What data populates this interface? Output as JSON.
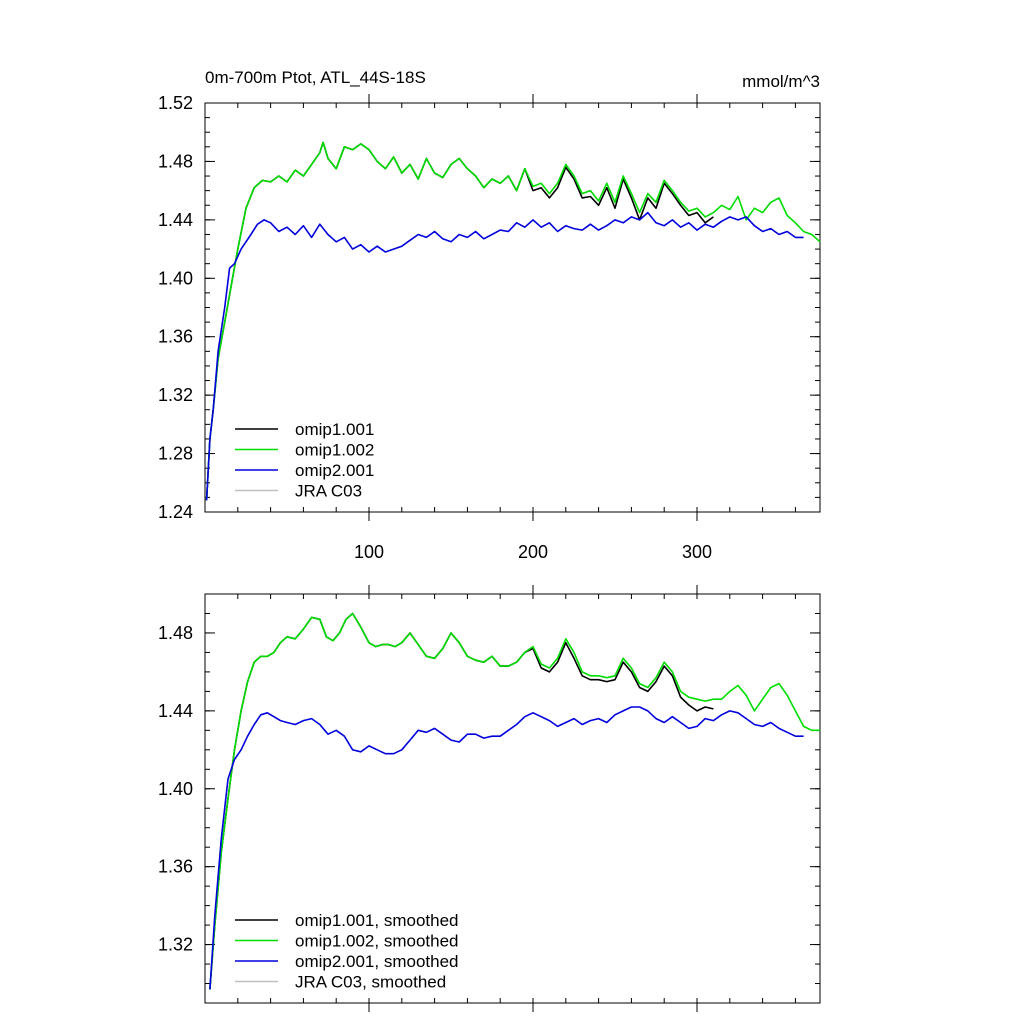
{
  "chart_data": [
    {
      "type": "line",
      "title": "0m-700m Ptot, ATL_44S-18S",
      "units": "mmol/m^3",
      "xlim": [
        0,
        375
      ],
      "ylim": [
        1.24,
        1.52
      ],
      "xticks": [
        100,
        200,
        300
      ],
      "yticks": [
        1.24,
        1.28,
        1.32,
        1.36,
        1.4,
        1.44,
        1.48,
        1.52
      ],
      "ytick_labels": [
        "1.24",
        "1.28",
        "1.32",
        "1.36",
        "1.40",
        "1.44",
        "1.48",
        "1.52"
      ],
      "legend_position": "bottom-left",
      "series": [
        {
          "name": "omip1.001",
          "color": "#000000",
          "x": [
            1,
            3,
            5,
            8,
            12,
            16,
            20,
            25,
            30,
            35,
            40,
            45,
            50,
            55,
            60,
            65,
            70,
            72,
            75,
            80,
            85,
            90,
            95,
            100,
            105,
            110,
            115,
            120,
            125,
            130,
            135,
            140,
            145,
            150,
            155,
            160,
            165,
            170,
            175,
            180,
            185,
            190,
            195,
            200,
            205,
            210,
            215,
            220,
            225,
            230,
            235,
            240,
            245,
            250,
            255,
            260,
            265,
            270,
            275,
            280,
            285,
            290,
            295,
            300,
            305,
            310
          ],
          "y": [
            1.248,
            1.29,
            1.31,
            1.345,
            1.37,
            1.395,
            1.42,
            1.448,
            1.462,
            1.467,
            1.466,
            1.47,
            1.466,
            1.474,
            1.47,
            1.478,
            1.486,
            1.493,
            1.482,
            1.475,
            1.49,
            1.488,
            1.492,
            1.488,
            1.48,
            1.475,
            1.483,
            1.472,
            1.478,
            1.468,
            1.482,
            1.472,
            1.469,
            1.478,
            1.482,
            1.475,
            1.47,
            1.462,
            1.468,
            1.465,
            1.47,
            1.46,
            1.475,
            1.46,
            1.462,
            1.455,
            1.462,
            1.476,
            1.468,
            1.455,
            1.456,
            1.45,
            1.462,
            1.448,
            1.468,
            1.455,
            1.44,
            1.455,
            1.448,
            1.465,
            1.458,
            1.45,
            1.443,
            1.445,
            1.438,
            1.442
          ]
        },
        {
          "name": "omip1.002",
          "color": "#00dd00",
          "x": [
            1,
            3,
            5,
            8,
            12,
            16,
            20,
            25,
            30,
            35,
            40,
            45,
            50,
            55,
            60,
            65,
            70,
            72,
            75,
            80,
            85,
            90,
            95,
            100,
            105,
            110,
            115,
            120,
            125,
            130,
            135,
            140,
            145,
            150,
            155,
            160,
            165,
            170,
            175,
            180,
            185,
            190,
            195,
            200,
            205,
            210,
            215,
            220,
            225,
            230,
            235,
            240,
            245,
            250,
            255,
            260,
            265,
            270,
            275,
            280,
            285,
            290,
            295,
            300,
            305,
            310,
            315,
            320,
            325,
            330,
            335,
            340,
            345,
            350,
            355,
            360,
            365,
            370,
            375
          ],
          "y": [
            1.248,
            1.29,
            1.31,
            1.345,
            1.37,
            1.395,
            1.42,
            1.448,
            1.462,
            1.467,
            1.466,
            1.47,
            1.466,
            1.474,
            1.47,
            1.478,
            1.486,
            1.493,
            1.482,
            1.475,
            1.49,
            1.488,
            1.492,
            1.488,
            1.48,
            1.475,
            1.483,
            1.472,
            1.478,
            1.468,
            1.482,
            1.472,
            1.469,
            1.478,
            1.482,
            1.475,
            1.47,
            1.462,
            1.468,
            1.465,
            1.47,
            1.46,
            1.475,
            1.463,
            1.465,
            1.458,
            1.465,
            1.478,
            1.47,
            1.458,
            1.46,
            1.453,
            1.465,
            1.452,
            1.47,
            1.458,
            1.445,
            1.458,
            1.452,
            1.467,
            1.46,
            1.452,
            1.446,
            1.448,
            1.442,
            1.445,
            1.45,
            1.447,
            1.456,
            1.44,
            1.448,
            1.445,
            1.452,
            1.455,
            1.443,
            1.438,
            1.432,
            1.43,
            1.425
          ]
        },
        {
          "name": "omip2.001",
          "color": "#0000dd",
          "x": [
            1,
            3,
            5,
            8,
            12,
            15,
            18,
            22,
            25,
            28,
            32,
            36,
            40,
            45,
            50,
            55,
            60,
            65,
            70,
            75,
            80,
            85,
            90,
            95,
            100,
            105,
            110,
            115,
            120,
            125,
            130,
            135,
            140,
            145,
            150,
            155,
            160,
            165,
            170,
            175,
            180,
            185,
            190,
            195,
            200,
            205,
            210,
            215,
            220,
            225,
            230,
            235,
            240,
            245,
            250,
            255,
            260,
            265,
            270,
            275,
            280,
            285,
            290,
            295,
            300,
            305,
            310,
            315,
            320,
            325,
            330,
            335,
            340,
            345,
            350,
            355,
            360,
            365
          ],
          "y": [
            1.248,
            1.29,
            1.31,
            1.35,
            1.38,
            1.407,
            1.41,
            1.42,
            1.425,
            1.43,
            1.437,
            1.44,
            1.438,
            1.432,
            1.435,
            1.43,
            1.436,
            1.428,
            1.437,
            1.43,
            1.425,
            1.428,
            1.42,
            1.423,
            1.418,
            1.422,
            1.418,
            1.42,
            1.422,
            1.426,
            1.43,
            1.428,
            1.432,
            1.427,
            1.425,
            1.43,
            1.428,
            1.432,
            1.427,
            1.43,
            1.433,
            1.432,
            1.438,
            1.435,
            1.44,
            1.435,
            1.438,
            1.432,
            1.436,
            1.434,
            1.433,
            1.437,
            1.433,
            1.436,
            1.44,
            1.438,
            1.442,
            1.44,
            1.445,
            1.438,
            1.436,
            1.44,
            1.435,
            1.438,
            1.433,
            1.437,
            1.435,
            1.439,
            1.442,
            1.44,
            1.442,
            1.436,
            1.432,
            1.434,
            1.43,
            1.432,
            1.428,
            1.428
          ]
        },
        {
          "name": "JRA C03",
          "color": "#c0c0c0",
          "x": [],
          "y": []
        }
      ]
    },
    {
      "type": "line",
      "xlim": [
        0,
        375
      ],
      "ylim": [
        1.29,
        1.5
      ],
      "xticks": [
        100,
        200,
        300
      ],
      "yticks": [
        1.32,
        1.36,
        1.4,
        1.44,
        1.48
      ],
      "ytick_labels": [
        "1.32",
        "1.36",
        "1.40",
        "1.44",
        "1.48"
      ],
      "legend_position": "bottom-left",
      "series": [
        {
          "name": "omip1.001, smoothed",
          "color": "#000000",
          "x": [
            3,
            6,
            10,
            14,
            18,
            22,
            26,
            30,
            34,
            38,
            42,
            46,
            50,
            55,
            60,
            65,
            70,
            74,
            78,
            82,
            86,
            90,
            95,
            100,
            104,
            108,
            112,
            116,
            120,
            125,
            130,
            135,
            140,
            145,
            150,
            155,
            160,
            165,
            170,
            175,
            180,
            185,
            190,
            195,
            200,
            205,
            210,
            215,
            220,
            225,
            230,
            235,
            240,
            245,
            250,
            255,
            260,
            265,
            270,
            275,
            280,
            285,
            290,
            295,
            300,
            305,
            310
          ],
          "y": [
            1.297,
            1.33,
            1.368,
            1.395,
            1.42,
            1.44,
            1.455,
            1.465,
            1.468,
            1.468,
            1.47,
            1.475,
            1.478,
            1.477,
            1.482,
            1.488,
            1.487,
            1.478,
            1.476,
            1.48,
            1.487,
            1.49,
            1.483,
            1.475,
            1.473,
            1.474,
            1.474,
            1.473,
            1.475,
            1.48,
            1.474,
            1.468,
            1.467,
            1.472,
            1.48,
            1.475,
            1.468,
            1.466,
            1.465,
            1.468,
            1.463,
            1.463,
            1.465,
            1.47,
            1.472,
            1.462,
            1.46,
            1.465,
            1.475,
            1.467,
            1.458,
            1.456,
            1.456,
            1.455,
            1.456,
            1.465,
            1.46,
            1.452,
            1.45,
            1.455,
            1.463,
            1.458,
            1.447,
            1.443,
            1.44,
            1.442,
            1.441
          ]
        },
        {
          "name": "omip1.002, smoothed",
          "color": "#00dd00",
          "x": [
            3,
            6,
            10,
            14,
            18,
            22,
            26,
            30,
            34,
            38,
            42,
            46,
            50,
            55,
            60,
            65,
            70,
            74,
            78,
            82,
            86,
            90,
            95,
            100,
            104,
            108,
            112,
            116,
            120,
            125,
            130,
            135,
            140,
            145,
            150,
            155,
            160,
            165,
            170,
            175,
            180,
            185,
            190,
            195,
            200,
            205,
            210,
            215,
            220,
            225,
            230,
            235,
            240,
            245,
            250,
            255,
            260,
            265,
            270,
            275,
            280,
            285,
            290,
            295,
            300,
            305,
            310,
            315,
            320,
            325,
            330,
            335,
            340,
            345,
            350,
            355,
            360,
            365,
            370,
            375
          ],
          "y": [
            1.297,
            1.33,
            1.368,
            1.395,
            1.42,
            1.44,
            1.455,
            1.465,
            1.468,
            1.468,
            1.47,
            1.475,
            1.478,
            1.477,
            1.482,
            1.488,
            1.487,
            1.478,
            1.476,
            1.48,
            1.487,
            1.49,
            1.483,
            1.475,
            1.473,
            1.474,
            1.474,
            1.473,
            1.475,
            1.48,
            1.474,
            1.468,
            1.467,
            1.472,
            1.48,
            1.475,
            1.468,
            1.466,
            1.465,
            1.468,
            1.463,
            1.463,
            1.465,
            1.47,
            1.473,
            1.464,
            1.462,
            1.467,
            1.477,
            1.47,
            1.46,
            1.458,
            1.458,
            1.457,
            1.458,
            1.467,
            1.462,
            1.454,
            1.452,
            1.457,
            1.465,
            1.46,
            1.45,
            1.447,
            1.446,
            1.445,
            1.446,
            1.446,
            1.45,
            1.453,
            1.448,
            1.44,
            1.446,
            1.452,
            1.454,
            1.448,
            1.44,
            1.432,
            1.43,
            1.43
          ]
        },
        {
          "name": "omip2.001, smoothed",
          "color": "#0000dd",
          "x": [
            3,
            6,
            10,
            14,
            18,
            22,
            26,
            30,
            34,
            38,
            42,
            46,
            50,
            55,
            60,
            65,
            70,
            75,
            80,
            85,
            90,
            95,
            100,
            105,
            110,
            115,
            120,
            125,
            130,
            135,
            140,
            145,
            150,
            155,
            160,
            165,
            170,
            175,
            180,
            185,
            190,
            195,
            200,
            205,
            210,
            215,
            220,
            225,
            230,
            235,
            240,
            245,
            250,
            255,
            260,
            265,
            270,
            275,
            280,
            285,
            290,
            295,
            300,
            305,
            310,
            315,
            320,
            325,
            330,
            335,
            340,
            345,
            350,
            355,
            360,
            365
          ],
          "y": [
            1.297,
            1.335,
            1.375,
            1.405,
            1.415,
            1.42,
            1.427,
            1.433,
            1.438,
            1.439,
            1.437,
            1.435,
            1.434,
            1.433,
            1.435,
            1.436,
            1.433,
            1.428,
            1.43,
            1.427,
            1.42,
            1.419,
            1.422,
            1.42,
            1.418,
            1.418,
            1.42,
            1.425,
            1.43,
            1.429,
            1.431,
            1.428,
            1.425,
            1.424,
            1.428,
            1.428,
            1.426,
            1.427,
            1.427,
            1.43,
            1.433,
            1.437,
            1.439,
            1.437,
            1.435,
            1.432,
            1.434,
            1.436,
            1.433,
            1.435,
            1.436,
            1.434,
            1.438,
            1.44,
            1.442,
            1.442,
            1.44,
            1.436,
            1.434,
            1.437,
            1.434,
            1.431,
            1.432,
            1.436,
            1.435,
            1.438,
            1.44,
            1.439,
            1.436,
            1.433,
            1.432,
            1.434,
            1.431,
            1.429,
            1.427,
            1.427
          ]
        },
        {
          "name": "JRA C03, smoothed",
          "color": "#c0c0c0",
          "x": [],
          "y": []
        }
      ]
    }
  ]
}
